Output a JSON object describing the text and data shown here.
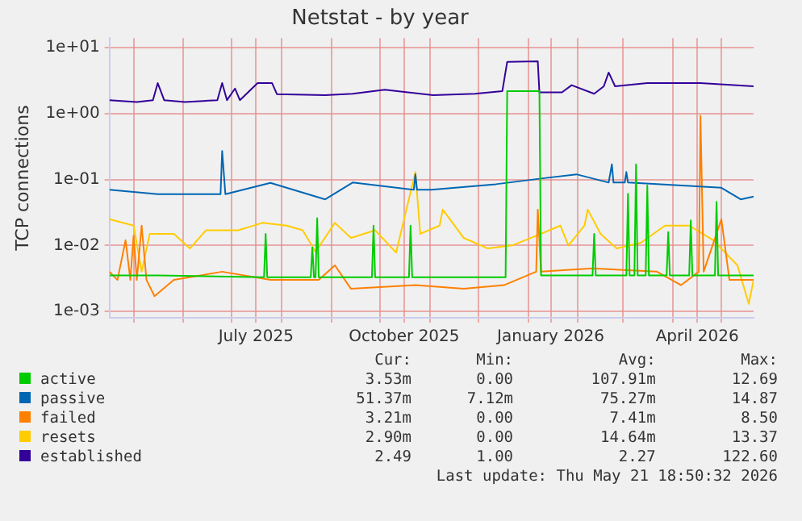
{
  "chart_data": {
    "type": "line",
    "title": "Netstat - by year",
    "ylabel": "TCP connections",
    "xlim": [
      "2025-04-16",
      "2026-05-21"
    ],
    "xticks": [
      {
        "value": "2025-05-01",
        "label": null
      },
      {
        "value": "2025-06-01",
        "label": null
      },
      {
        "value": "2025-07-01",
        "label": null
      },
      {
        "value": "2025-07-16",
        "label": "July 2025"
      },
      {
        "value": "2025-08-01",
        "label": null
      },
      {
        "value": "2025-09-01",
        "label": null
      },
      {
        "value": "2025-10-01",
        "label": null
      },
      {
        "value": "2025-10-16",
        "label": "October 2025"
      },
      {
        "value": "2025-11-01",
        "label": null
      },
      {
        "value": "2025-12-01",
        "label": null
      },
      {
        "value": "2026-01-01",
        "label": null
      },
      {
        "value": "2026-01-15",
        "label": "January 2026"
      },
      {
        "value": "2026-02-01",
        "label": null
      },
      {
        "value": "2026-03-01",
        "label": null
      },
      {
        "value": "2026-04-01",
        "label": null
      },
      {
        "value": "2026-04-16",
        "label": "April 2026"
      },
      {
        "value": "2026-05-01",
        "label": null
      }
    ],
    "ylim": [
      0.0008,
      14
    ],
    "log": true,
    "yticks": [
      {
        "value": 0.001,
        "label": "1e-03"
      },
      {
        "value": 0.01,
        "label": "1e-02"
      },
      {
        "value": 0.1,
        "label": "1e-01"
      },
      {
        "value": 1,
        "label": "1e+00"
      },
      {
        "value": 10,
        "label": "1e+01"
      }
    ],
    "grid": true,
    "legend": "bottom",
    "series": [
      {
        "name": "active",
        "color": "#00cc00",
        "x": [
          "2025-04-16",
          "2025-05-16",
          "2025-07-21",
          "2025-07-22",
          "2025-07-23",
          "2025-08-19",
          "2025-08-20",
          "2025-08-21",
          "2025-08-22",
          "2025-08-23",
          "2025-08-24",
          "2025-09-26",
          "2025-09-27",
          "2025-09-28",
          "2025-10-19",
          "2025-10-20",
          "2025-10-21",
          "2025-12-18",
          "2025-12-19",
          "2026-01-08",
          "2026-01-09",
          "2026-02-10",
          "2026-02-11",
          "2026-02-12",
          "2026-03-03",
          "2026-03-04",
          "2026-03-05",
          "2026-03-08",
          "2026-03-09",
          "2026-03-10",
          "2026-03-15",
          "2026-03-16",
          "2026-03-17",
          "2026-03-28",
          "2026-03-29",
          "2026-03-30",
          "2026-04-11",
          "2026-04-12",
          "2026-04-13",
          "2026-04-27",
          "2026-04-28",
          "2026-04-29",
          "2026-05-21"
        ],
        "values": [
          0.0035,
          0.0035,
          0.0033,
          0.015,
          0.0033,
          0.0033,
          0.0093,
          0.0033,
          0.0033,
          0.026,
          0.0033,
          0.0033,
          0.02,
          0.0033,
          0.0033,
          0.02,
          0.0033,
          0.0033,
          2.2,
          2.2,
          0.0035,
          0.0035,
          0.015,
          0.0035,
          0.0035,
          0.061,
          0.0035,
          0.0035,
          0.17,
          0.0035,
          0.0035,
          0.081,
          0.0035,
          0.0035,
          0.016,
          0.0035,
          0.0035,
          0.024,
          0.0035,
          0.0035,
          0.046,
          0.0035,
          0.0035
        ]
      },
      {
        "name": "passive",
        "color": "#0066b3",
        "x": [
          "2025-04-16",
          "2025-05-16",
          "2025-06-24",
          "2025-06-25",
          "2025-06-27",
          "2025-07-25",
          "2025-08-28",
          "2025-09-14",
          "2025-10-22",
          "2025-10-23",
          "2025-10-24",
          "2025-11-02",
          "2025-12-12",
          "2026-01-11",
          "2026-01-31",
          "2026-02-20",
          "2026-02-22",
          "2026-02-23",
          "2026-03-02",
          "2026-03-03",
          "2026-03-04",
          "2026-04-11",
          "2026-05-01",
          "2026-05-13",
          "2026-05-21"
        ],
        "values": [
          0.07,
          0.06,
          0.06,
          0.27,
          0.06,
          0.089,
          0.05,
          0.09,
          0.07,
          0.12,
          0.07,
          0.07,
          0.085,
          0.105,
          0.12,
          0.09,
          0.17,
          0.09,
          0.09,
          0.13,
          0.09,
          0.08,
          0.075,
          0.05,
          0.055
        ]
      },
      {
        "name": "failed",
        "color": "#ff8000",
        "x": [
          "2025-04-16",
          "2025-04-21",
          "2025-04-26",
          "2025-04-29",
          "2025-05-01",
          "2025-05-03",
          "2025-05-06",
          "2025-05-09",
          "2025-05-14",
          "2025-05-26",
          "2025-06-25",
          "2025-07-25",
          "2025-08-24",
          "2025-09-03",
          "2025-09-13",
          "2025-10-23",
          "2025-11-22",
          "2025-12-17",
          "2026-01-06",
          "2026-01-07",
          "2026-01-09",
          "2026-02-10",
          "2026-03-22",
          "2026-04-06",
          "2026-04-17",
          "2026-04-18",
          "2026-04-20",
          "2026-05-01",
          "2026-05-06",
          "2026-05-21"
        ],
        "values": [
          0.004,
          0.003,
          0.012,
          0.003,
          0.014,
          0.003,
          0.02,
          0.003,
          0.0017,
          0.003,
          0.004,
          0.003,
          0.003,
          0.005,
          0.0022,
          0.0025,
          0.0022,
          0.0025,
          0.004,
          0.035,
          0.004,
          0.0045,
          0.004,
          0.0025,
          0.004,
          0.93,
          0.004,
          0.025,
          0.003,
          0.003
        ]
      },
      {
        "name": "resets",
        "color": "#ffcc00",
        "x": [
          "2025-04-16",
          "2025-05-01",
          "2025-05-06",
          "2025-05-11",
          "2025-05-26",
          "2025-06-05",
          "2025-06-15",
          "2025-07-05",
          "2025-07-20",
          "2025-08-04",
          "2025-08-14",
          "2025-08-22",
          "2025-09-03",
          "2025-09-13",
          "2025-09-28",
          "2025-10-11",
          "2025-10-23",
          "2025-10-26",
          "2025-11-07",
          "2025-11-09",
          "2025-11-22",
          "2025-12-07",
          "2025-12-22",
          "2026-01-06",
          "2026-01-21",
          "2026-01-26",
          "2026-02-05",
          "2026-02-07",
          "2026-02-15",
          "2026-02-25",
          "2026-03-12",
          "2026-03-27",
          "2026-04-11",
          "2026-04-26",
          "2026-05-11",
          "2026-05-18",
          "2026-05-21"
        ],
        "values": [
          0.025,
          0.02,
          0.004,
          0.015,
          0.015,
          0.009,
          0.017,
          0.017,
          0.022,
          0.02,
          0.017,
          0.008,
          0.022,
          0.013,
          0.017,
          0.0078,
          0.13,
          0.015,
          0.02,
          0.035,
          0.013,
          0.009,
          0.01,
          0.014,
          0.02,
          0.01,
          0.02,
          0.035,
          0.015,
          0.009,
          0.011,
          0.02,
          0.02,
          0.012,
          0.005,
          0.0013,
          0.003
        ]
      },
      {
        "name": "established",
        "color": "#330099",
        "x": [
          "2025-04-16",
          "2025-05-03",
          "2025-05-13",
          "2025-05-16",
          "2025-05-20",
          "2025-06-02",
          "2025-06-22",
          "2025-06-25",
          "2025-06-28",
          "2025-07-03",
          "2025-07-06",
          "2025-07-17",
          "2025-07-26",
          "2025-07-29",
          "2025-08-28",
          "2025-09-14",
          "2025-10-04",
          "2025-11-03",
          "2025-11-29",
          "2025-12-16",
          "2025-12-19",
          "2026-01-07",
          "2026-01-08",
          "2026-01-22",
          "2026-01-28",
          "2026-02-11",
          "2026-02-17",
          "2026-02-20",
          "2026-02-24",
          "2026-03-16",
          "2026-04-18",
          "2026-05-21"
        ],
        "values": [
          1.6,
          1.5,
          1.6,
          2.9,
          1.6,
          1.5,
          1.6,
          2.9,
          1.6,
          2.4,
          1.6,
          2.9,
          2.9,
          1.98,
          1.9,
          2.0,
          2.3,
          1.9,
          2.0,
          2.2,
          6.1,
          6.2,
          2.1,
          2.1,
          2.7,
          2.0,
          2.6,
          4.2,
          2.6,
          2.9,
          2.9,
          2.6
        ]
      }
    ],
    "annotations": [
      "Cur:",
      "Min:",
      "Avg:",
      "Max:",
      "3.53m",
      "0.00",
      "107.91m",
      "12.69",
      "51.37m",
      "7.12m",
      "75.27m",
      "14.87",
      "3.21m",
      "0.00",
      "7.41m",
      "8.50",
      "2.90m",
      "0.00",
      "14.64m",
      "13.37",
      "2.49",
      "1.00",
      "2.27",
      "122.60",
      "Last update: Thu May 21 18:50:32 2026"
    ]
  }
}
